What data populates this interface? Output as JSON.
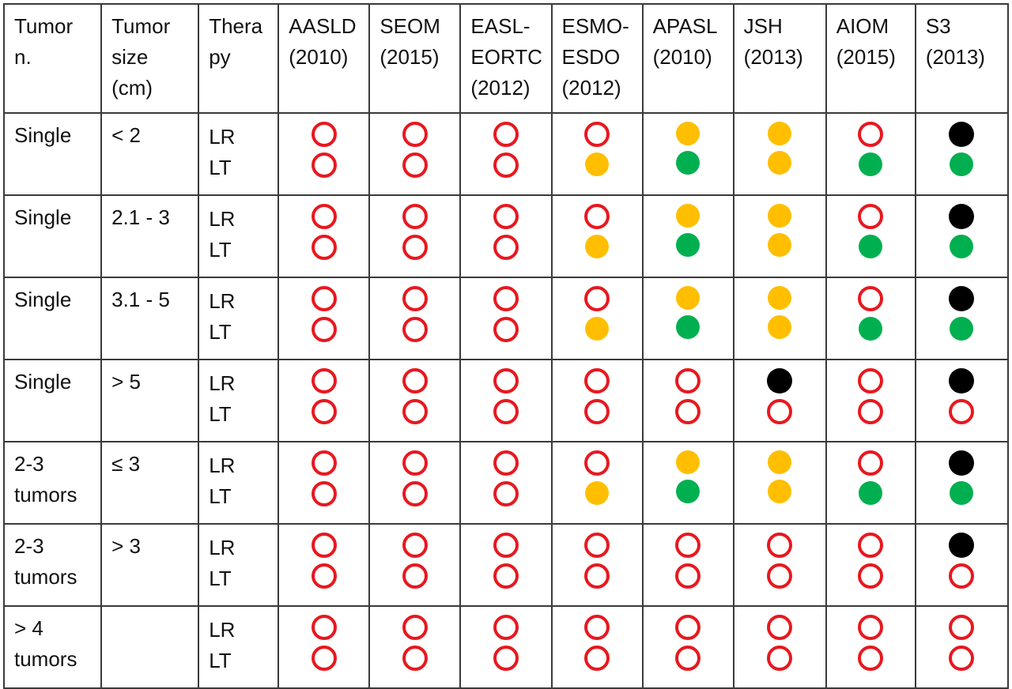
{
  "headers": [
    [
      "Tumor",
      "n."
    ],
    [
      "Tumor",
      "size",
      "(cm)"
    ],
    [
      "Thera",
      "py"
    ],
    [
      "AASLD",
      "(2010)"
    ],
    [
      "SEOM",
      "(2015)"
    ],
    [
      "EASL-",
      "EORTC",
      "(2012)"
    ],
    [
      "ESMO-",
      "ESDO",
      "(2012)"
    ],
    [
      "APASL",
      "(2010)"
    ],
    [
      "JSH",
      "(2013)"
    ],
    [
      "AIOM",
      "(2015)"
    ],
    [
      "S3",
      "(2013)"
    ]
  ],
  "legend_colors": {
    "open": "#e8181f",
    "black": "#000000",
    "yellow": "#ffbf00",
    "green": "#00b050"
  },
  "rows": [
    {
      "number": [
        "Single"
      ],
      "size": [
        "< 2"
      ],
      "therapy": [
        "LR",
        "LT"
      ],
      "marks": [
        [
          "open",
          "open"
        ],
        [
          "open",
          "open"
        ],
        [
          "open",
          "open"
        ],
        [
          "open",
          "yellow"
        ],
        [
          "yellow",
          "green"
        ],
        [
          "yellow",
          "yellow"
        ],
        [
          "open",
          "green"
        ],
        [
          "black",
          "green"
        ]
      ]
    },
    {
      "number": [
        "Single"
      ],
      "size": [
        "2.1 - 3"
      ],
      "therapy": [
        "LR",
        "LT"
      ],
      "marks": [
        [
          "open",
          "open"
        ],
        [
          "open",
          "open"
        ],
        [
          "open",
          "open"
        ],
        [
          "open",
          "yellow"
        ],
        [
          "yellow",
          "green"
        ],
        [
          "yellow",
          "yellow"
        ],
        [
          "open",
          "green"
        ],
        [
          "black",
          "green"
        ]
      ]
    },
    {
      "number": [
        "Single"
      ],
      "size": [
        "3.1 - 5"
      ],
      "therapy": [
        "LR",
        "LT"
      ],
      "marks": [
        [
          "open",
          "open"
        ],
        [
          "open",
          "open"
        ],
        [
          "open",
          "open"
        ],
        [
          "open",
          "yellow"
        ],
        [
          "yellow",
          "green"
        ],
        [
          "yellow",
          "yellow"
        ],
        [
          "open",
          "green"
        ],
        [
          "black",
          "green"
        ]
      ]
    },
    {
      "number": [
        "Single"
      ],
      "size": [
        "> 5"
      ],
      "therapy": [
        "LR",
        "LT"
      ],
      "marks": [
        [
          "open",
          "open"
        ],
        [
          "open",
          "open"
        ],
        [
          "open",
          "open"
        ],
        [
          "open",
          "open"
        ],
        [
          "open",
          "open"
        ],
        [
          "black",
          "open"
        ],
        [
          "open",
          "open"
        ],
        [
          "black",
          "open"
        ]
      ]
    },
    {
      "number": [
        "2-3",
        "tumors"
      ],
      "size": [
        "≤ 3"
      ],
      "therapy": [
        "LR",
        "LT"
      ],
      "marks": [
        [
          "open",
          "open"
        ],
        [
          "open",
          "open"
        ],
        [
          "open",
          "open"
        ],
        [
          "open",
          "yellow"
        ],
        [
          "yellow",
          "green"
        ],
        [
          "yellow",
          "yellow"
        ],
        [
          "open",
          "green"
        ],
        [
          "black",
          "green"
        ]
      ]
    },
    {
      "number": [
        "2-3",
        "tumors"
      ],
      "size": [
        "> 3"
      ],
      "therapy": [
        "LR",
        "LT"
      ],
      "marks": [
        [
          "open",
          "open"
        ],
        [
          "open",
          "open"
        ],
        [
          "open",
          "open"
        ],
        [
          "open",
          "open"
        ],
        [
          "open",
          "open"
        ],
        [
          "open",
          "open"
        ],
        [
          "open",
          "open"
        ],
        [
          "black",
          "open"
        ]
      ]
    },
    {
      "number": [
        "> 4",
        "tumors"
      ],
      "size": [],
      "therapy": [
        "LR",
        "LT"
      ],
      "marks": [
        [
          "open",
          "open"
        ],
        [
          "open",
          "open"
        ],
        [
          "open",
          "open"
        ],
        [
          "open",
          "open"
        ],
        [
          "open",
          "open"
        ],
        [
          "open",
          "open"
        ],
        [
          "open",
          "open"
        ],
        [
          "open",
          "open"
        ]
      ]
    }
  ]
}
